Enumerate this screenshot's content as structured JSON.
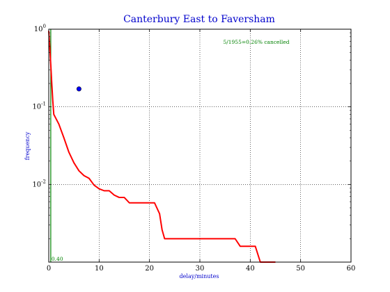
{
  "chart_data": {
    "type": "line",
    "title": "Canterbury East to Faversham",
    "xlabel": "delay/minutes",
    "ylabel": "frequency",
    "xlim": [
      0,
      60
    ],
    "ylim": [
      0.001,
      1
    ],
    "yscale": "log",
    "grid": true,
    "x_ticks": [
      "0",
      "10",
      "20",
      "30",
      "40",
      "50",
      "60"
    ],
    "y_ticks": [
      {
        "base": "10",
        "exp": "0"
      },
      {
        "base": "10",
        "exp": "-1"
      },
      {
        "base": "10",
        "exp": "-2"
      }
    ],
    "annotation": "5/1955=0.26% cancelled",
    "median_label": "0.40",
    "median_x": 0.4,
    "series": [
      {
        "color": "#ff0000",
        "points": [
          [
            0,
            0.95
          ],
          [
            0.2,
            0.6
          ],
          [
            0.4,
            0.35
          ],
          [
            0.6,
            0.2
          ],
          [
            0.8,
            0.12
          ],
          [
            1,
            0.08
          ],
          [
            2,
            0.06
          ],
          [
            3,
            0.04
          ],
          [
            4,
            0.026
          ],
          [
            5,
            0.019
          ],
          [
            6,
            0.015
          ],
          [
            7,
            0.013
          ],
          [
            8,
            0.012
          ],
          [
            9,
            0.0098
          ],
          [
            10,
            0.0088
          ],
          [
            11,
            0.0083
          ],
          [
            12,
            0.0083
          ],
          [
            13,
            0.0073
          ],
          [
            14,
            0.0068
          ],
          [
            15,
            0.0068
          ],
          [
            16,
            0.0058
          ],
          [
            21,
            0.0058
          ],
          [
            22,
            0.0042
          ],
          [
            22.5,
            0.0026
          ],
          [
            23,
            0.002
          ],
          [
            37,
            0.002
          ],
          [
            38,
            0.0016
          ],
          [
            41,
            0.0016
          ],
          [
            42,
            0.001
          ],
          [
            45,
            0.001
          ]
        ]
      }
    ],
    "marker_point": {
      "x": 6,
      "y": 0.17,
      "color": "#0000ff"
    },
    "colors": {
      "line": "#ff0000",
      "median": "#008000",
      "marker": "#0000ff",
      "labels": "#0000cc"
    }
  }
}
